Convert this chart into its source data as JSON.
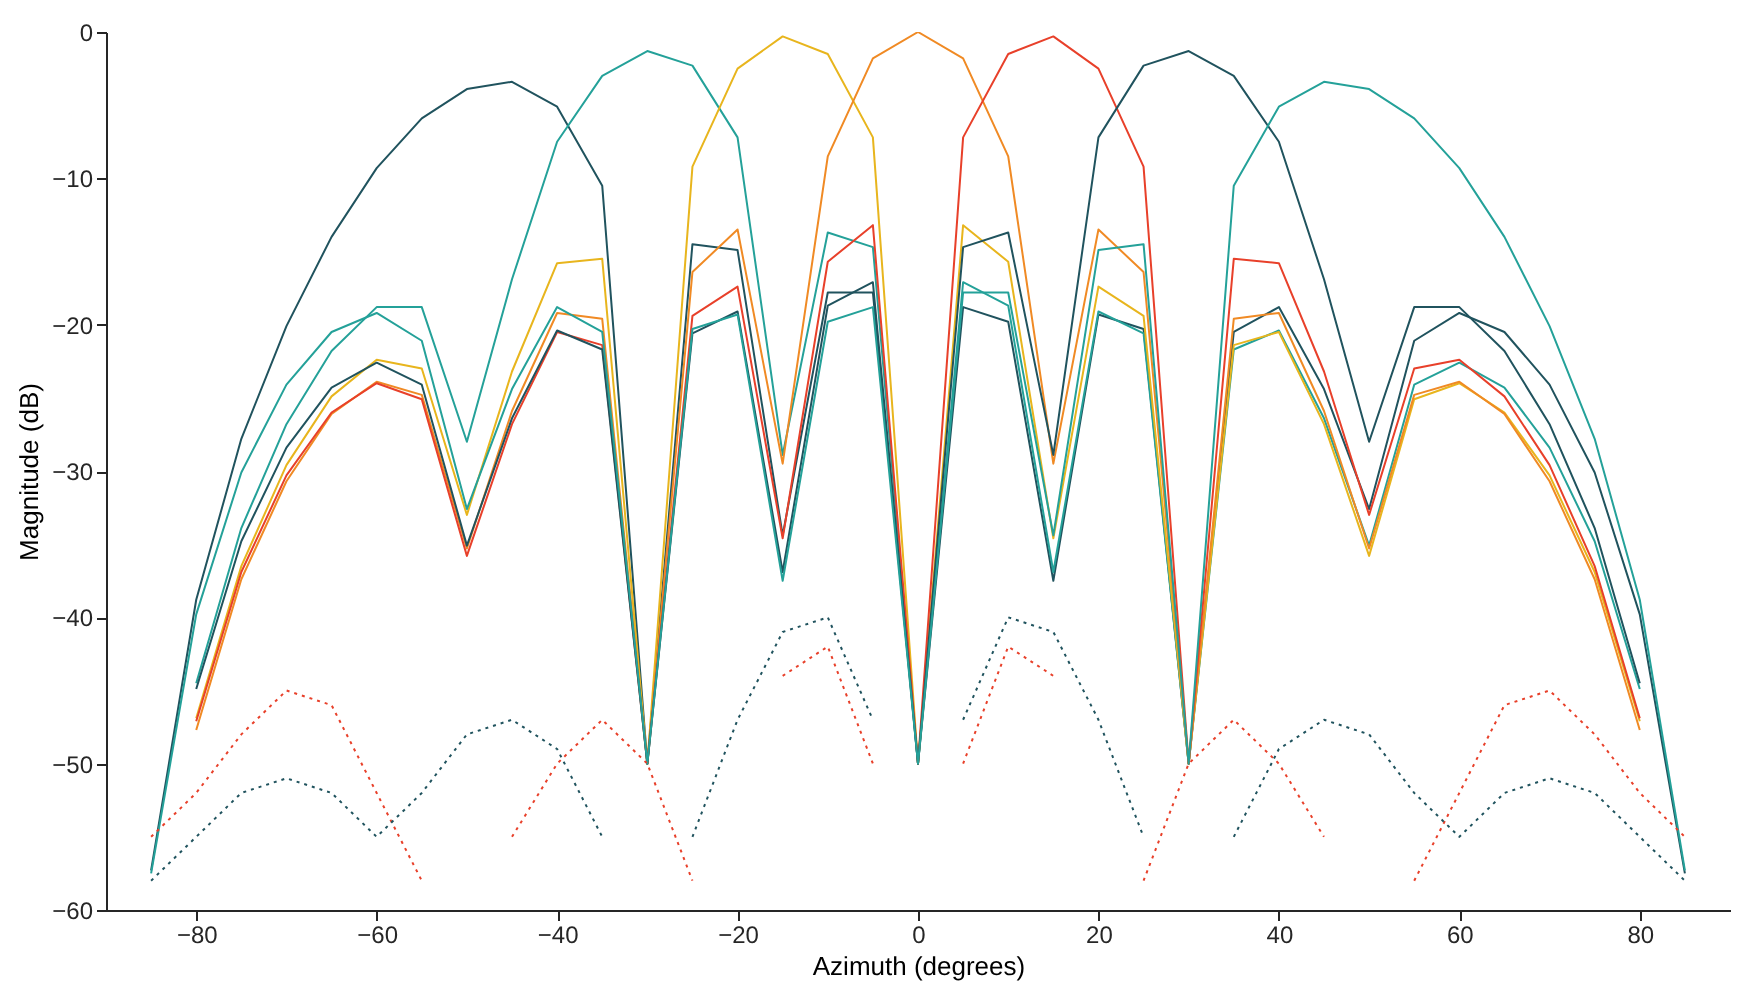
{
  "chart_data": {
    "type": "line",
    "xlabel": "Azimuth (degrees)",
    "ylabel": "Magnitude (dB)",
    "x": [
      -85,
      -80,
      -75,
      -70,
      -65,
      -60,
      -55,
      -50,
      -45,
      -40,
      -35,
      -30,
      -25,
      -20,
      -15,
      -10,
      -5,
      0,
      5,
      10,
      15,
      20,
      25,
      30,
      35,
      40,
      45,
      50,
      55,
      60,
      65,
      70,
      75,
      80,
      85
    ],
    "xlim": [
      -90,
      90
    ],
    "xticks": [
      -80,
      -60,
      -40,
      -20,
      0,
      20,
      40,
      60,
      80
    ],
    "ylim": [
      -60,
      0
    ],
    "yticks": [
      -60,
      -50,
      -40,
      -30,
      -20,
      -10,
      0
    ],
    "grid": false,
    "legend": false,
    "marker": "none",
    "series": [
      {
        "color": "#20535e",
        "line_style": "solid",
        "values": [
          -57.3,
          -38.8,
          -27.8,
          -20.1,
          -14.0,
          -9.3,
          -5.9,
          -3.9,
          -3.4,
          -5.1,
          -10.5,
          -50,
          -14.5,
          -14.9,
          -34.4,
          -17.8,
          -17.8,
          -50,
          -18.8,
          -19.8,
          -37.5,
          -19.3,
          -20.3,
          -50,
          -20.5,
          -18.8,
          -24.4,
          -32.6,
          -21.1,
          -19.2,
          -20.5,
          -24.1,
          -30.1,
          -39.8,
          -57.5
        ]
      },
      {
        "color": "#24a199",
        "line_style": "solid",
        "values": [
          null,
          -44.5,
          -33.9,
          -26.8,
          -21.8,
          -18.8,
          -18.8,
          -28.0,
          -16.9,
          -7.5,
          -3.0,
          -1.3,
          -2.3,
          -7.2,
          -28.9,
          -13.7,
          -14.7,
          -50,
          -17.1,
          -18.7,
          -36.9,
          -19.1,
          -20.6,
          -50,
          -21.7,
          -20.4,
          -26.4,
          -35.1,
          -24.1,
          -22.6,
          -24.3,
          -28.4,
          -34.8,
          -44.9,
          null
        ]
      },
      {
        "color": "#e8b51d",
        "line_style": "solid",
        "values": [
          null,
          -46.9,
          -36.5,
          -29.6,
          -24.9,
          -22.4,
          -23.0,
          -33.0,
          -23.2,
          -15.8,
          -15.5,
          -50,
          -9.2,
          -2.5,
          -0.3,
          -1.5,
          -7.2,
          -50,
          -13.2,
          -15.7,
          -34.6,
          -17.4,
          -19.4,
          -50,
          -21.4,
          -20.5,
          -26.8,
          -35.8,
          -25.1,
          -24.0,
          -26.0,
          -30.3,
          -36.9,
          -47.1,
          null
        ]
      },
      {
        "color": "#f08a24",
        "line_style": "solid",
        "values": [
          null,
          -47.7,
          -37.4,
          -30.7,
          -26.1,
          -23.9,
          -24.8,
          -35.3,
          -25.9,
          -19.2,
          -19.6,
          -50,
          -16.4,
          -13.5,
          -29.5,
          -8.5,
          -1.8,
          0,
          -1.8,
          -8.5,
          -29.5,
          -13.5,
          -16.4,
          -50,
          -19.6,
          -19.2,
          -25.9,
          -35.3,
          -24.8,
          -23.9,
          -26.1,
          -30.7,
          -37.4,
          -47.7,
          null
        ]
      },
      {
        "color": "#e8402a",
        "line_style": "solid",
        "values": [
          null,
          -47.1,
          -36.9,
          -30.3,
          -26.0,
          -24.0,
          -25.1,
          -35.8,
          -26.8,
          -20.5,
          -21.4,
          -50,
          -19.4,
          -17.4,
          -34.6,
          -15.7,
          -13.2,
          -50,
          -7.2,
          -1.5,
          -0.3,
          -2.5,
          -9.2,
          -50,
          -15.5,
          -15.8,
          -23.2,
          -33.0,
          -23.0,
          -22.4,
          -24.9,
          -29.6,
          -36.5,
          -46.9,
          null
        ]
      },
      {
        "color": "#20535e",
        "line_style": "solid",
        "values": [
          null,
          -44.9,
          -34.8,
          -28.4,
          -24.3,
          -22.6,
          -24.1,
          -35.1,
          -26.4,
          -20.4,
          -21.7,
          -50,
          -20.6,
          -19.1,
          -36.9,
          -18.7,
          -17.1,
          -50,
          -14.7,
          -13.7,
          -28.9,
          -7.2,
          -2.3,
          -1.3,
          -3.0,
          -7.5,
          -16.9,
          -28.0,
          -18.8,
          -18.8,
          -21.8,
          -26.8,
          -33.9,
          -44.5,
          null
        ]
      },
      {
        "color": "#24a199",
        "line_style": "solid",
        "values": [
          -57.5,
          -39.8,
          -30.1,
          -24.1,
          -20.5,
          -19.2,
          -21.1,
          -32.6,
          -24.4,
          -18.8,
          -20.5,
          -50,
          -20.3,
          -19.3,
          -37.5,
          -19.8,
          -18.8,
          -50,
          -17.8,
          -17.8,
          -34.4,
          -14.9,
          -14.5,
          -50,
          -10.5,
          -5.1,
          -3.4,
          -3.9,
          -5.9,
          -9.3,
          -14.0,
          -20.1,
          -27.8,
          -38.8,
          -57.3
        ]
      },
      {
        "color": "#e8402a",
        "line_style": "dotted",
        "values": [
          -55,
          -52,
          -48,
          -45,
          -46,
          -52,
          -58,
          null,
          -55,
          -50,
          -47,
          -50,
          -58,
          null,
          -44,
          -42,
          -50,
          null,
          -50,
          -42,
          -44,
          null,
          -58,
          -50,
          -47,
          -50,
          -55,
          null,
          -58,
          -52,
          -46,
          -45,
          -48,
          -52,
          -55
        ]
      },
      {
        "color": "#20535e",
        "line_style": "dotted",
        "values": [
          -58,
          -55,
          -52,
          -51,
          -52,
          -55,
          -52,
          -48,
          -47,
          -49,
          -55,
          null,
          -55,
          -47,
          -41,
          -40,
          -47,
          null,
          -47,
          -40,
          -41,
          -47,
          -55,
          null,
          -55,
          -49,
          -47,
          -48,
          -52,
          -55,
          -52,
          -51,
          -52,
          -55,
          -58
        ]
      }
    ]
  }
}
